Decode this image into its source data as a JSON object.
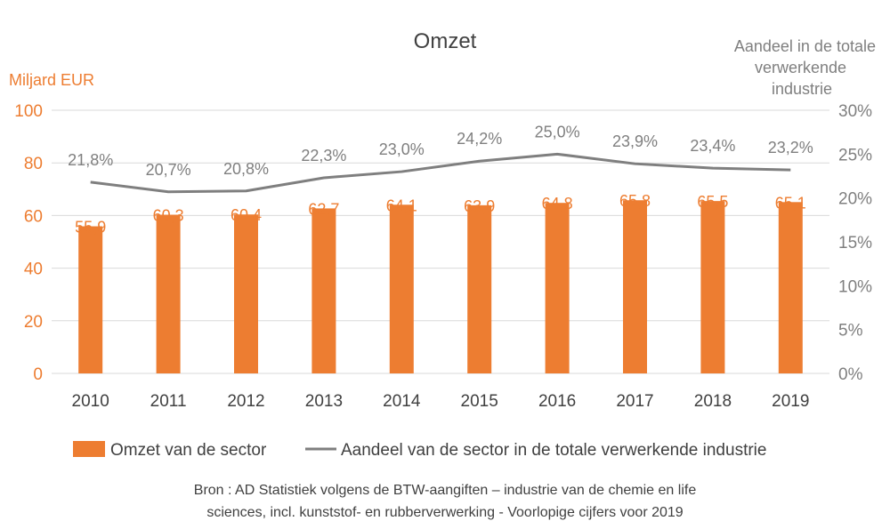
{
  "chart_data": {
    "type": "bar",
    "title": "Omzet",
    "ylabel_left": "Miljard EUR",
    "ylabel_right_lines": [
      "Aandeel in de totale",
      "verwerkende",
      "industrie"
    ],
    "categories": [
      "2010",
      "2011",
      "2012",
      "2013",
      "2014",
      "2015",
      "2016",
      "2017",
      "2018",
      "2019"
    ],
    "ylim_left": [
      0,
      100
    ],
    "yticks_left": [
      "0",
      "20",
      "40",
      "60",
      "80",
      "100"
    ],
    "ylim_right": [
      0,
      30
    ],
    "yticks_right": [
      "0%",
      "5%",
      "10%",
      "15%",
      "20%",
      "25%",
      "30%"
    ],
    "grid": true,
    "legend_position": "bottom",
    "series": [
      {
        "name": "Omzet van de sector",
        "type": "bar",
        "axis": "left",
        "color": "#ED7D31",
        "values": [
          55.9,
          60.3,
          60.4,
          62.7,
          64.1,
          63.9,
          64.8,
          65.8,
          65.5,
          65.1
        ],
        "labels": [
          "55,9",
          "60,3",
          "60,4",
          "62,7",
          "64,1",
          "63,9",
          "64,8",
          "65,8",
          "65,5",
          "65,1"
        ]
      },
      {
        "name": "Aandeel van de sector in de totale verwerkende industrie",
        "type": "line",
        "axis": "right",
        "color": "#7F7F7F",
        "values": [
          21.8,
          20.7,
          20.8,
          22.3,
          23.0,
          24.2,
          25.0,
          23.9,
          23.4,
          23.2
        ],
        "labels": [
          "21,8%",
          "20,7%",
          "20,8%",
          "22,3%",
          "23,0%",
          "24,2%",
          "25,0%",
          "23,9%",
          "23,4%",
          "23,2%"
        ]
      }
    ],
    "source_lines": [
      "Bron : AD Statistiek volgens de BTW-aangiften – industrie van de chemie en life",
      "sciences, incl. kunststof- en rubberverwerking  - Voorlopige cijfers voor 2019"
    ]
  }
}
